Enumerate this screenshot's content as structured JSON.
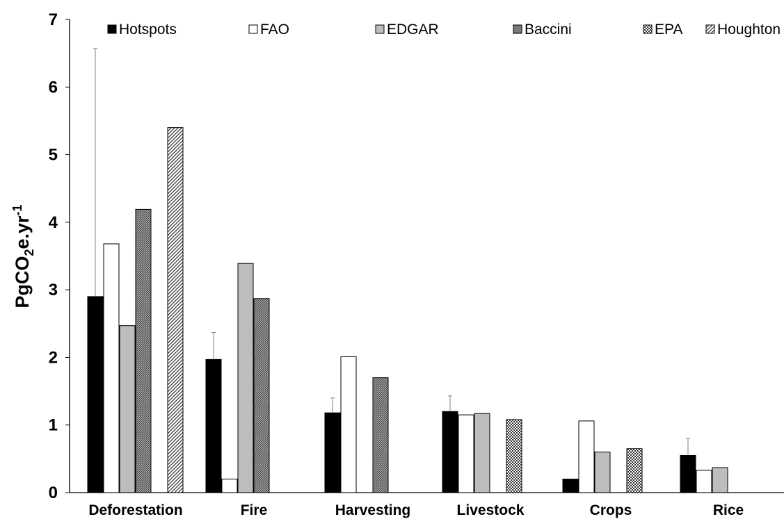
{
  "chart_data": {
    "type": "bar",
    "ylabel": "PgCO2e.yr-1",
    "ylabel_parts": {
      "main": "PgCO",
      "sub": "2",
      "mid": "e.yr",
      "sup": "-1"
    },
    "ylim": [
      0,
      7
    ],
    "yticks": [
      0,
      1,
      2,
      3,
      4,
      5,
      6,
      7
    ],
    "grid": false,
    "legend_position": "top",
    "categories": [
      "Deforestation",
      "Fire",
      "Harvesting",
      "Livestock",
      "Crops",
      "Rice"
    ],
    "series": [
      {
        "name": "Hotspots",
        "pattern": "solid-black",
        "color": "#000000",
        "values": [
          2.9,
          1.97,
          1.18,
          1.2,
          0.2,
          0.55
        ],
        "error_upper": [
          6.57,
          2.37,
          1.4,
          1.43,
          null,
          0.8
        ]
      },
      {
        "name": "FAO",
        "pattern": "white",
        "color": "#ffffff",
        "values": [
          3.68,
          0.2,
          2.01,
          1.15,
          1.06,
          0.33
        ]
      },
      {
        "name": "EDGAR",
        "pattern": "light-gray",
        "color": "#bdbdbd",
        "values": [
          2.47,
          3.39,
          null,
          1.17,
          0.6,
          0.37
        ]
      },
      {
        "name": "Baccini",
        "pattern": "dense-dark-gray",
        "color": "#808080",
        "values": [
          4.19,
          2.87,
          1.7,
          null,
          null,
          null
        ]
      },
      {
        "name": "EPA",
        "pattern": "checker",
        "color": "#808080",
        "values": [
          null,
          null,
          null,
          1.08,
          0.65,
          null
        ]
      },
      {
        "name": "Houghton",
        "pattern": "diagonal-hatch",
        "color": "#808080",
        "values": [
          5.4,
          null,
          null,
          null,
          null,
          null
        ]
      }
    ]
  }
}
